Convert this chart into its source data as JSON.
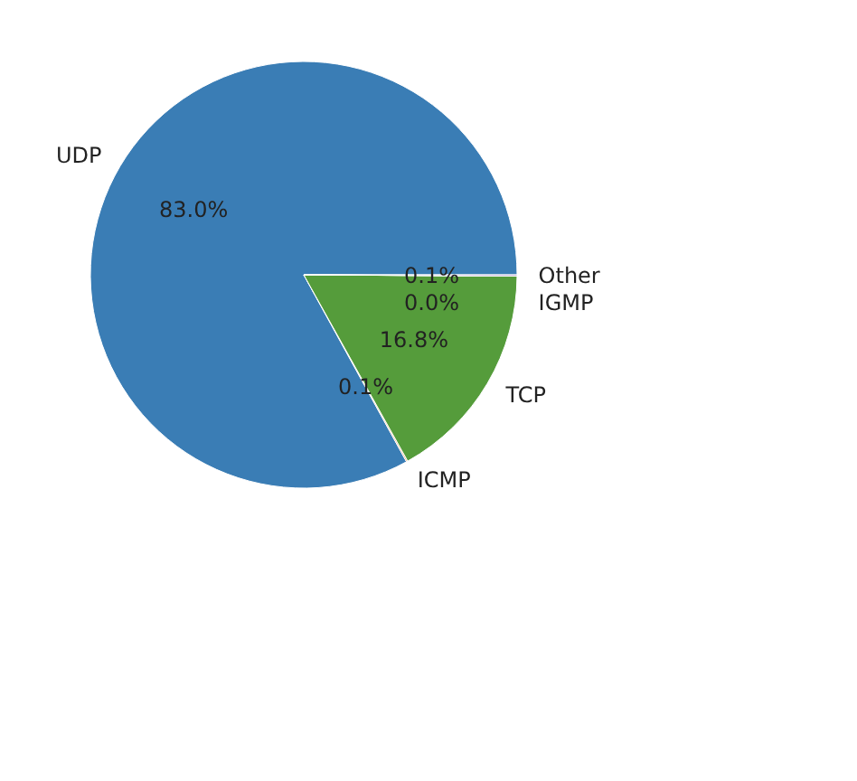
{
  "chart_data": {
    "type": "pie",
    "categories": [
      "UDP",
      "ICMP",
      "TCP",
      "IGMP",
      "Other"
    ],
    "values": [
      83.0,
      0.1,
      16.8,
      0.0,
      0.1
    ],
    "colors": [
      "#3a7db5",
      "#f29a63",
      "#559c3b",
      "#d9534f",
      "#9a76b8"
    ],
    "value_labels": [
      "83.0%",
      "0.1%",
      "16.8%",
      "0.0%",
      "0.1%"
    ]
  }
}
